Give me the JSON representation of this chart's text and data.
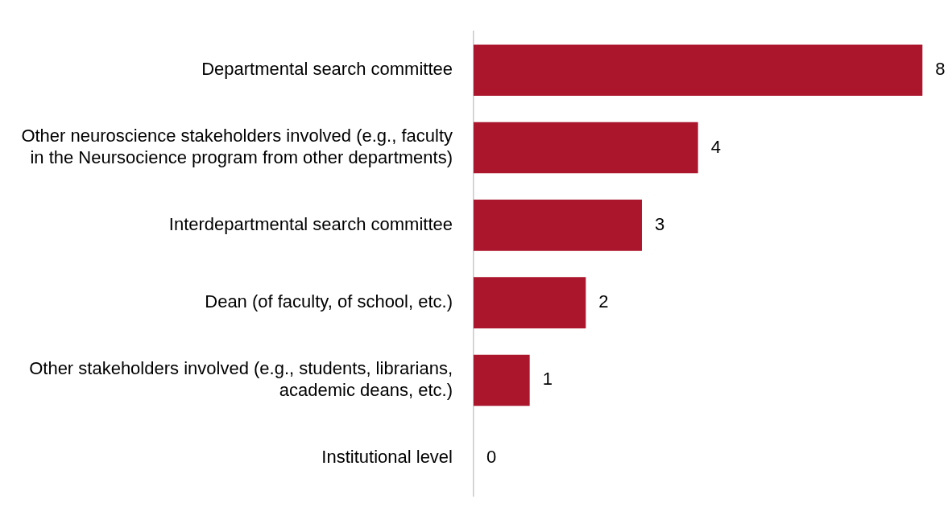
{
  "chart_data": {
    "type": "bar",
    "orientation": "horizontal",
    "categories": [
      "Departmental search committee",
      "Other neuroscience stakeholders involved (e.g., faculty in the Neursocience program from other departments)",
      "Interdepartmental search committee",
      "Dean (of faculty, of school, etc.)",
      "Other stakeholders involved (e.g., students, librarians, academic deans, etc.)",
      "Institutional level"
    ],
    "values": [
      8,
      4,
      3,
      2,
      1,
      0
    ],
    "color": "#ab162d",
    "data_labels": true,
    "legend": false
  }
}
